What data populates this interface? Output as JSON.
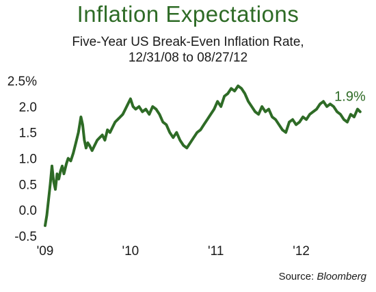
{
  "chart_data": {
    "type": "line",
    "title": "Inflation Expectations",
    "subtitle_line1": "Five-Year US Break-Even Inflation Rate,",
    "subtitle_line2": "12/31/08 to 08/27/12",
    "x_tick_labels": [
      "'09",
      "'10",
      "'11",
      "'12"
    ],
    "y_tick_labels": [
      "2.5%",
      "2.0",
      "1.5",
      "1.0",
      "0.5",
      "0.0",
      "-0.5"
    ],
    "ylim": [
      -0.5,
      2.5
    ],
    "xlim": [
      2009.0,
      2012.7
    ],
    "end_label": "1.9%",
    "source_prefix": "Source: ",
    "source_name": "Bloomberg",
    "line_color": "#2e6b26",
    "series": [
      {
        "x": [
          2009.0,
          2009.02,
          2009.04,
          2009.06,
          2009.08,
          2009.1,
          2009.12,
          2009.14,
          2009.16,
          2009.18,
          2009.2,
          2009.22,
          2009.25,
          2009.27,
          2009.3,
          2009.33,
          2009.36,
          2009.39,
          2009.42,
          2009.44,
          2009.46,
          2009.48,
          2009.5,
          2009.52,
          2009.55,
          2009.58,
          2009.61,
          2009.64,
          2009.67,
          2009.7,
          2009.73,
          2009.76,
          2009.79,
          2009.82,
          2009.85,
          2009.88,
          2009.91,
          2009.94,
          2009.97,
          2010.0,
          2010.03,
          2010.06,
          2010.1,
          2010.14,
          2010.18,
          2010.22,
          2010.26,
          2010.3,
          2010.34,
          2010.38,
          2010.42,
          2010.46,
          2010.5,
          2010.54,
          2010.58,
          2010.62,
          2010.66,
          2010.7,
          2010.74,
          2010.78,
          2010.82,
          2010.86,
          2010.9,
          2010.94,
          2010.98,
          2011.02,
          2011.06,
          2011.1,
          2011.14,
          2011.18,
          2011.22,
          2011.26,
          2011.3,
          2011.34,
          2011.38,
          2011.42,
          2011.46,
          2011.5,
          2011.54,
          2011.58,
          2011.62,
          2011.66,
          2011.7,
          2011.74,
          2011.78,
          2011.82,
          2011.86,
          2011.9,
          2011.94,
          2011.98,
          2012.02,
          2012.06,
          2012.1,
          2012.14,
          2012.18,
          2012.22,
          2012.26,
          2012.3,
          2012.34,
          2012.38,
          2012.42,
          2012.46,
          2012.5,
          2012.54,
          2012.58,
          2012.62,
          2012.66,
          2012.69
        ],
        "y": [
          -0.3,
          -0.1,
          0.2,
          0.5,
          0.85,
          0.55,
          0.4,
          0.7,
          0.6,
          0.75,
          0.85,
          0.7,
          0.9,
          1.0,
          0.95,
          1.1,
          1.3,
          1.5,
          1.8,
          1.65,
          1.35,
          1.2,
          1.3,
          1.25,
          1.15,
          1.25,
          1.35,
          1.4,
          1.45,
          1.35,
          1.55,
          1.5,
          1.6,
          1.7,
          1.75,
          1.8,
          1.85,
          1.95,
          2.05,
          2.15,
          2.0,
          1.95,
          2.0,
          1.9,
          1.95,
          1.85,
          2.0,
          1.95,
          1.85,
          1.7,
          1.65,
          1.5,
          1.4,
          1.5,
          1.35,
          1.25,
          1.2,
          1.3,
          1.4,
          1.5,
          1.55,
          1.65,
          1.75,
          1.85,
          1.95,
          2.1,
          2.0,
          2.2,
          2.25,
          2.35,
          2.3,
          2.4,
          2.35,
          2.25,
          2.1,
          2.0,
          1.9,
          1.85,
          2.0,
          1.9,
          1.95,
          1.8,
          1.75,
          1.65,
          1.55,
          1.5,
          1.7,
          1.75,
          1.65,
          1.7,
          1.8,
          1.75,
          1.85,
          1.9,
          1.95,
          2.05,
          2.1,
          2.0,
          2.05,
          2.0,
          1.9,
          1.85,
          1.75,
          1.7,
          1.85,
          1.8,
          1.95,
          1.9
        ]
      }
    ]
  }
}
